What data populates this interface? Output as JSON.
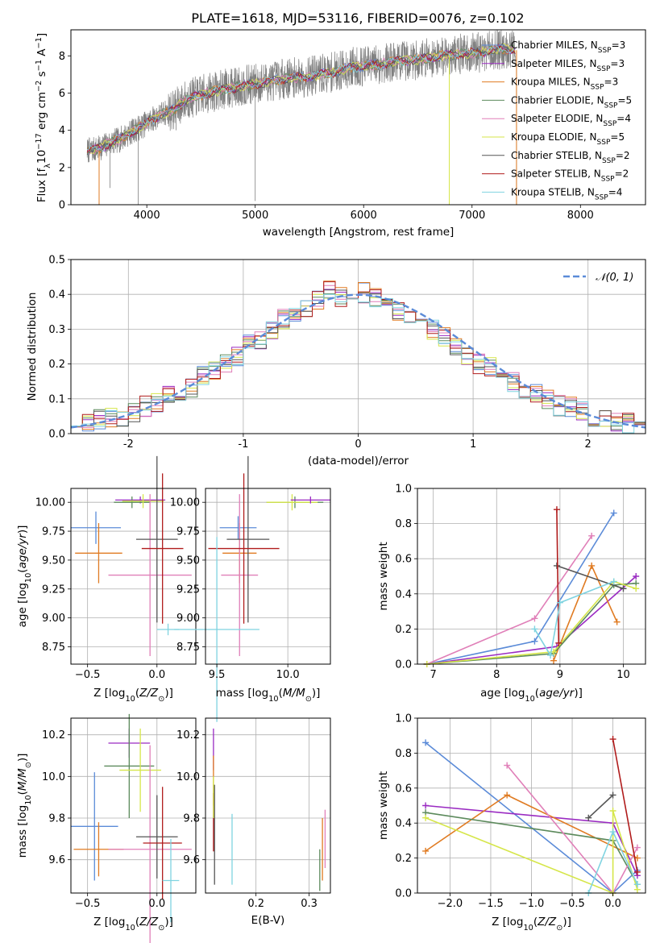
{
  "figure_title": "PLATE=1618, MJD=53116, FIBERID=0076, z=0.102",
  "colors": {
    "Chabrier MILES": "#5b8bd8",
    "Salpeter MILES": "#9a2bc2",
    "Kroupa MILES": "#e07b22",
    "Chabrier ELODIE": "#5c8a5c",
    "Salpeter ELODIE": "#e07fb8",
    "Kroupa ELODIE": "#d6e64a",
    "Chabrier STELIB": "#555555",
    "Salpeter STELIB": "#b01c1c",
    "Kroupa STELIB": "#7fd3e0",
    "data": "#808080",
    "normal": "#5b8bd8"
  },
  "chart_data": [
    {
      "id": "spectrum",
      "type": "line",
      "xlabel": "wavelength [Angstrom, rest frame]",
      "ylabel": "Flux [f_λ 10^-17 erg cm^-2 s^-1 A^-1]",
      "xlim": [
        3300,
        8600
      ],
      "ylim": [
        0,
        9.4
      ],
      "xticks": [
        4000,
        5000,
        6000,
        7000,
        8000
      ],
      "yticks": [
        0,
        2,
        4,
        6,
        8
      ],
      "legend_loc": "upper right",
      "legend": [
        "Chabrier MILES, N_SSP=3",
        "Salpeter MILES, N_SSP=3",
        "Kroupa MILES, N_SSP=3",
        "Chabrier ELODIE, N_SSP=5",
        "Salpeter ELODIE, N_SSP=4",
        "Kroupa ELODIE, N_SSP=5",
        "Chabrier STELIB, N_SSP=2",
        "Salpeter STELIB, N_SSP=2",
        "Kroupa STELIB, N_SSP=4"
      ],
      "legend_display": [
        {
          "text": "Chabrier MILES, N",
          "sub": "SSP",
          "tail": "=3"
        },
        {
          "text": "Salpeter MILES, N",
          "sub": "SSP",
          "tail": "=3"
        },
        {
          "text": "Kroupa MILES, N",
          "sub": "SSP",
          "tail": "=3"
        },
        {
          "text": "Chabrier ELODIE, N",
          "sub": "SSP",
          "tail": "=5"
        },
        {
          "text": "Salpeter ELODIE, N",
          "sub": "SSP",
          "tail": "=4"
        },
        {
          "text": "Kroupa ELODIE, N",
          "sub": "SSP",
          "tail": "=5"
        },
        {
          "text": "Chabrier STELIB, N",
          "sub": "SSP",
          "tail": "=2"
        },
        {
          "text": "Salpeter STELIB, N",
          "sub": "SSP",
          "tail": "=2"
        },
        {
          "text": "Kroupa STELIB, N",
          "sub": "SSP",
          "tail": "=4"
        }
      ],
      "continuum": {
        "x": [
          3450,
          3550,
          3650,
          3750,
          3850,
          3950,
          4050,
          4150,
          4250,
          4350,
          4500,
          4700,
          4900,
          5100,
          5300,
          5500,
          5700,
          5900,
          6100,
          6300,
          6500,
          6700,
          6900,
          7100,
          7300,
          7400
        ],
        "y": [
          2.9,
          3.0,
          3.3,
          3.5,
          3.9,
          4.2,
          4.6,
          4.9,
          5.1,
          5.6,
          5.9,
          6.2,
          6.4,
          6.6,
          6.8,
          6.9,
          7.1,
          7.4,
          7.5,
          7.7,
          7.8,
          8.0,
          8.1,
          8.2,
          8.4,
          8.3
        ]
      },
      "data_spikes": [
        {
          "x": 3560,
          "low": 0.0
        },
        {
          "x": 3660,
          "low": 0.9
        },
        {
          "x": 3920,
          "low": 0.0
        },
        {
          "x": 4270,
          "low": 4.0
        },
        {
          "x": 5000,
          "low": 0.2
        },
        {
          "x": 6790,
          "low": 0.0
        },
        {
          "x": 7410,
          "low": 0.0
        }
      ]
    },
    {
      "id": "residuals",
      "type": "line",
      "xlabel": "(data-model)/error",
      "ylabel": "Normed distribution",
      "xlim": [
        -2.5,
        2.5
      ],
      "ylim": [
        0,
        0.5
      ],
      "xticks": [
        -2,
        -1,
        0,
        1,
        2
      ],
      "yticks": [
        0.0,
        0.1,
        0.2,
        0.3,
        0.4,
        0.5
      ],
      "legend_loc": "upper right",
      "legend": [
        "N(0,1)"
      ],
      "bins": [
        -2.5,
        -2.4,
        -2.3,
        -2.2,
        -2.1,
        -2.0,
        -1.9,
        -1.8,
        -1.7,
        -1.6,
        -1.5,
        -1.4,
        -1.3,
        -1.2,
        -1.1,
        -1.0,
        -0.9,
        -0.8,
        -0.7,
        -0.6,
        -0.5,
        -0.4,
        -0.3,
        -0.2,
        -0.1,
        0.0,
        0.1,
        0.2,
        0.3,
        0.4,
        0.5,
        0.6,
        0.7,
        0.8,
        0.9,
        1.0,
        1.1,
        1.2,
        1.3,
        1.4,
        1.5,
        1.6,
        1.7,
        1.8,
        1.9,
        2.0,
        2.1,
        2.2,
        2.3,
        2.4
      ],
      "base_density": [
        0.034,
        0.032,
        0.041,
        0.045,
        0.05,
        0.06,
        0.078,
        0.09,
        0.11,
        0.115,
        0.135,
        0.165,
        0.18,
        0.2,
        0.22,
        0.255,
        0.27,
        0.3,
        0.33,
        0.345,
        0.355,
        0.38,
        0.41,
        0.395,
        0.38,
        0.405,
        0.39,
        0.375,
        0.35,
        0.335,
        0.325,
        0.3,
        0.275,
        0.255,
        0.225,
        0.2,
        0.19,
        0.165,
        0.15,
        0.13,
        0.115,
        0.1,
        0.08,
        0.075,
        0.065,
        0.05,
        0.042,
        0.035,
        0.03,
        0.025
      ]
    },
    {
      "id": "age_vs_Z",
      "type": "scatter",
      "xlabel": "Z [log10(Z/Z⊙)]",
      "ylabel": "age [log10(age/yr)]",
      "xlim": [
        -0.62,
        0.28
      ],
      "ylim": [
        8.6,
        10.12
      ],
      "xticks": [
        -0.5,
        0.0
      ],
      "yticks": [
        8.75,
        9.0,
        9.25,
        9.5,
        9.75,
        10.0
      ],
      "points": [
        {
          "s": "Chabrier MILES",
          "x": -0.44,
          "xerr": 0.18,
          "y": 9.78,
          "yerr": 0.14
        },
        {
          "s": "Kroupa MILES",
          "x": -0.42,
          "xerr": 0.17,
          "y": 9.56,
          "yerr": 0.26
        },
        {
          "s": "Salpeter MILES",
          "x": -0.12,
          "xerr": 0.18,
          "y": 10.02,
          "yerr": 0.03
        },
        {
          "s": "Chabrier ELODIE",
          "x": -0.18,
          "xerr": 0.13,
          "y": 10.0,
          "yerr": 0.05
        },
        {
          "s": "Kroupa ELODIE",
          "x": -0.1,
          "xerr": 0.15,
          "y": 10.01,
          "yerr": 0.06
        },
        {
          "s": "Salpeter ELODIE",
          "x": -0.05,
          "xerr": 0.3,
          "y": 9.37,
          "yerr": 0.7
        },
        {
          "s": "Chabrier STELIB",
          "x": 0.0,
          "xerr": 0.15,
          "y": 9.68,
          "yerr": 0.72
        },
        {
          "s": "Salpeter STELIB",
          "x": 0.04,
          "xerr": 0.15,
          "y": 9.6,
          "yerr": 0.65
        },
        {
          "s": "Kroupa STELIB",
          "x": 0.08,
          "xerr": 0.08,
          "y": 8.9,
          "yerr": 0.05
        }
      ]
    },
    {
      "id": "age_vs_mass",
      "type": "scatter",
      "xlabel": "mass [log10(M/M⊙)]",
      "ylabel": "",
      "xlim": [
        9.42,
        10.3
      ],
      "ylim": [
        8.6,
        10.12
      ],
      "xticks": [
        9.5,
        10.0
      ],
      "yticks": [
        8.75,
        9.0,
        9.25,
        9.5,
        9.75,
        10.0
      ],
      "points": [
        {
          "s": "Chabrier MILES",
          "x": 9.65,
          "xerr": 0.13,
          "y": 9.78,
          "yerr": 0.1
        },
        {
          "s": "Kroupa MILES",
          "x": 9.66,
          "xerr": 0.12,
          "y": 9.56,
          "yerr": 0.26
        },
        {
          "s": "Salpeter ELODIE",
          "x": 9.66,
          "xerr": 0.13,
          "y": 9.37,
          "yerr": 0.7
        },
        {
          "s": "Chabrier STELIB",
          "x": 9.72,
          "xerr": 0.15,
          "y": 9.68,
          "yerr": 0.72
        },
        {
          "s": "Salpeter STELIB",
          "x": 9.69,
          "xerr": 0.25,
          "y": 9.6,
          "yerr": 0.65
        },
        {
          "s": "Kroupa STELIB",
          "x": 9.5,
          "xerr": 0.3,
          "y": 8.9,
          "yerr": 0.8
        },
        {
          "s": "Chabrier ELODIE",
          "x": 10.05,
          "xerr": 0.2,
          "y": 10.0,
          "yerr": 0.05
        },
        {
          "s": "Kroupa ELODIE",
          "x": 10.03,
          "xerr": 0.18,
          "y": 10.0,
          "yerr": 0.07
        },
        {
          "s": "Salpeter MILES",
          "x": 10.16,
          "xerr": 0.14,
          "y": 10.02,
          "yerr": 0.03
        }
      ]
    },
    {
      "id": "weight_vs_age",
      "type": "line",
      "xlabel": "age [log10(age/yr)]",
      "ylabel": "mass weight",
      "xlim": [
        6.75,
        10.35
      ],
      "ylim": [
        0,
        1.0
      ],
      "xticks": [
        7,
        8,
        9,
        10
      ],
      "yticks": [
        0.0,
        0.2,
        0.4,
        0.6,
        0.8,
        1.0
      ],
      "series": [
        {
          "name": "Chabrier MILES",
          "x": [
            6.9,
            8.6,
            9.85
          ],
          "y": [
            0.0,
            0.13,
            0.86
          ]
        },
        {
          "name": "Salpeter MILES",
          "x": [
            6.9,
            8.95,
            10.2
          ],
          "y": [
            0.0,
            0.1,
            0.5
          ]
        },
        {
          "name": "Kroupa MILES",
          "x": [
            8.9,
            9.5,
            9.9
          ],
          "y": [
            0.02,
            0.56,
            0.24
          ]
        },
        {
          "name": "Chabrier ELODIE",
          "x": [
            6.9,
            8.9,
            9.85,
            10.2
          ],
          "y": [
            0.0,
            0.06,
            0.45,
            0.46
          ]
        },
        {
          "name": "Salpeter ELODIE",
          "x": [
            6.9,
            8.6,
            9.5
          ],
          "y": [
            0.0,
            0.26,
            0.73
          ]
        },
        {
          "name": "Kroupa ELODIE",
          "x": [
            6.9,
            8.9,
            9.85,
            10.2
          ],
          "y": [
            0.0,
            0.07,
            0.47,
            0.43
          ]
        },
        {
          "name": "Chabrier STELIB",
          "x": [
            8.95,
            10.0
          ],
          "y": [
            0.56,
            0.43
          ]
        },
        {
          "name": "Salpeter STELIB",
          "x": [
            8.95,
            8.98
          ],
          "y": [
            0.88,
            0.12
          ]
        },
        {
          "name": "Kroupa STELIB",
          "x": [
            8.6,
            8.85,
            9.0,
            9.85
          ],
          "y": [
            0.2,
            0.05,
            0.35,
            0.47
          ]
        }
      ]
    },
    {
      "id": "mass_vs_Z",
      "type": "scatter",
      "xlabel": "Z [log10(Z/Z⊙)]",
      "ylabel": "mass [log10(M/M⊙)]",
      "xlim": [
        -0.62,
        0.28
      ],
      "ylim": [
        9.44,
        10.28
      ],
      "xticks": [
        -0.5,
        0.0
      ],
      "yticks": [
        9.6,
        9.8,
        10.0,
        10.2
      ],
      "points": [
        {
          "s": "Chabrier MILES",
          "x": -0.45,
          "xerr": 0.17,
          "y": 9.76,
          "yerr": 0.26
        },
        {
          "s": "Kroupa MILES",
          "x": -0.42,
          "xerr": 0.18,
          "y": 9.65,
          "yerr": 0.13
        },
        {
          "s": "Salpeter MILES",
          "x": -0.2,
          "xerr": 0.15,
          "y": 10.16,
          "yerr": 0.07
        },
        {
          "s": "Chabrier ELODIE",
          "x": -0.2,
          "xerr": 0.18,
          "y": 10.05,
          "yerr": 0.25
        },
        {
          "s": "Kroupa ELODIE",
          "x": -0.12,
          "xerr": 0.15,
          "y": 10.03,
          "yerr": 0.2
        },
        {
          "s": "Salpeter ELODIE",
          "x": -0.05,
          "xerr": 0.3,
          "y": 9.65,
          "yerr": 0.5
        },
        {
          "s": "Chabrier STELIB",
          "x": 0.0,
          "xerr": 0.15,
          "y": 9.71,
          "yerr": 0.2
        },
        {
          "s": "Salpeter STELIB",
          "x": 0.04,
          "xerr": 0.14,
          "y": 9.68,
          "yerr": 0.27
        },
        {
          "s": "Kroupa STELIB",
          "x": 0.1,
          "xerr": 0.06,
          "y": 9.5,
          "yerr": 0.2
        }
      ]
    },
    {
      "id": "mass_vs_EBV",
      "type": "scatter",
      "xlabel": "E(B-V)",
      "ylabel": "",
      "xlim": [
        0.105,
        0.34
      ],
      "ylim": [
        9.44,
        10.28
      ],
      "xticks": [
        0.2,
        0.3
      ],
      "yticks": [
        9.6,
        9.8,
        10.0,
        10.2
      ],
      "points": [
        {
          "s": "Salpeter MILES",
          "x": 0.12,
          "xerr": 0.0,
          "y": 10.13,
          "yerr": 0.1
        },
        {
          "s": "Kroupa MILES",
          "x": 0.12,
          "xerr": 0.0,
          "y": 9.98,
          "yerr": 0.12
        },
        {
          "s": "Chabrier STELIB",
          "x": 0.122,
          "xerr": 0.0,
          "y": 9.72,
          "yerr": 0.24
        },
        {
          "s": "Salpeter STELIB",
          "x": 0.12,
          "xerr": 0.0,
          "y": 9.78,
          "yerr": 0.14
        },
        {
          "s": "Kroupa ELODIE",
          "x": 0.12,
          "xerr": 0.0,
          "y": 9.9,
          "yerr": 0.1
        },
        {
          "s": "Kroupa STELIB",
          "x": 0.155,
          "xerr": 0.0,
          "y": 9.65,
          "yerr": 0.17
        },
        {
          "s": "Salpeter ELODIE",
          "x": 0.33,
          "xerr": 0.0,
          "y": 9.7,
          "yerr": 0.14
        },
        {
          "s": "Kroupa MILES",
          "x": 0.325,
          "xerr": 0.0,
          "y": 9.65,
          "yerr": 0.15
        },
        {
          "s": "Chabrier ELODIE",
          "x": 0.32,
          "xerr": 0.0,
          "y": 9.55,
          "yerr": 0.1
        }
      ]
    },
    {
      "id": "weight_vs_Z",
      "type": "line",
      "xlabel": "Z [log10(Z/Z⊙)]",
      "ylabel": "mass weight",
      "xlim": [
        -2.4,
        0.4
      ],
      "ylim": [
        0,
        1.0
      ],
      "xticks": [
        -2.0,
        -1.5,
        -1.0,
        -0.5,
        0.0
      ],
      "yticks": [
        0.0,
        0.2,
        0.4,
        0.6,
        0.8,
        1.0
      ],
      "series": [
        {
          "name": "Chabrier MILES",
          "x": [
            -2.3,
            0.0,
            0.3
          ],
          "y": [
            0.86,
            0.0,
            0.13
          ]
        },
        {
          "name": "Salpeter MILES",
          "x": [
            -2.3,
            0.0,
            0.3
          ],
          "y": [
            0.5,
            0.4,
            0.1
          ]
        },
        {
          "name": "Kroupa MILES",
          "x": [
            -2.3,
            -1.3,
            0.3
          ],
          "y": [
            0.24,
            0.56,
            0.2
          ]
        },
        {
          "name": "Chabrier ELODIE",
          "x": [
            -2.3,
            0.0,
            0.3
          ],
          "y": [
            0.46,
            0.3,
            0.05
          ]
        },
        {
          "name": "Salpeter ELODIE",
          "x": [
            -1.3,
            0.0,
            0.3
          ],
          "y": [
            0.73,
            0.0,
            0.26
          ]
        },
        {
          "name": "Kroupa ELODIE",
          "x": [
            -2.3,
            0.0,
            0.0,
            0.3
          ],
          "y": [
            0.43,
            0.0,
            0.47,
            0.02
          ]
        },
        {
          "name": "Chabrier STELIB",
          "x": [
            -0.3,
            0.0
          ],
          "y": [
            0.43,
            0.56
          ]
        },
        {
          "name": "Salpeter STELIB",
          "x": [
            0.0,
            0.3
          ],
          "y": [
            0.88,
            0.12
          ]
        },
        {
          "name": "Kroupa STELIB",
          "x": [
            -0.3,
            0.0,
            0.3
          ],
          "y": [
            0.0,
            0.35,
            0.05
          ]
        }
      ]
    }
  ]
}
